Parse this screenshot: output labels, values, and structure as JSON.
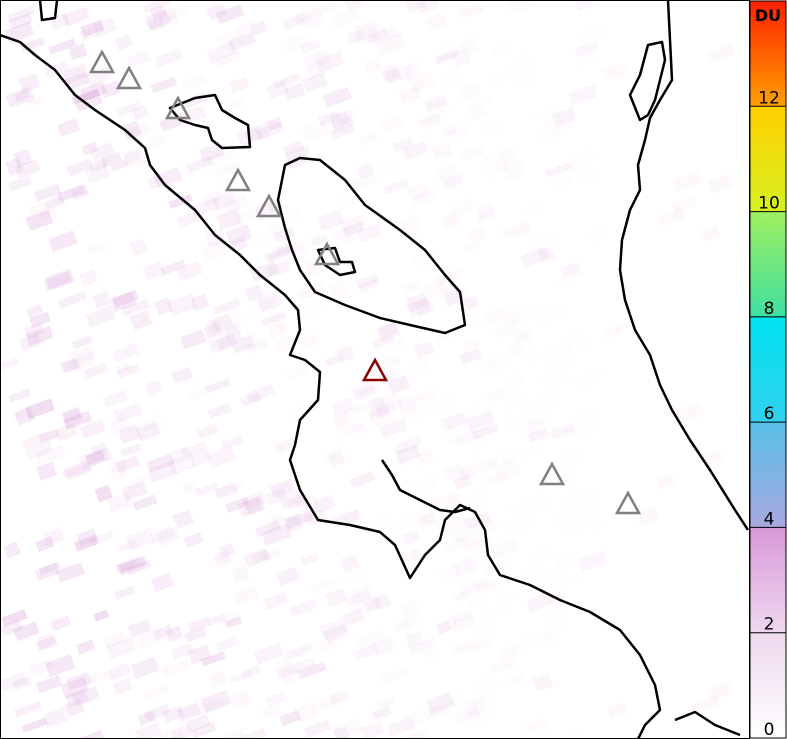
{
  "colorbar": {
    "unit_label": "DU",
    "ticks": [
      "0",
      "2",
      "4",
      "6",
      "8",
      "10",
      "12"
    ],
    "range": [
      0,
      14
    ],
    "stops": [
      {
        "value": 0,
        "color": "#ffffff"
      },
      {
        "value": 2,
        "color": "#eed8ee"
      },
      {
        "value": 4,
        "color": "#d898d8"
      },
      {
        "value": 4.01,
        "color": "#a8a8e0"
      },
      {
        "value": 6,
        "color": "#58c0e8"
      },
      {
        "value": 6.01,
        "color": "#30d0ee"
      },
      {
        "value": 8,
        "color": "#00e4f0"
      },
      {
        "value": 8.01,
        "color": "#40e0a0"
      },
      {
        "value": 10,
        "color": "#a0f060"
      },
      {
        "value": 10.01,
        "color": "#d8f020"
      },
      {
        "value": 12,
        "color": "#ffd000"
      },
      {
        "value": 12.01,
        "color": "#ffa000"
      },
      {
        "value": 14,
        "color": "#ff2000"
      }
    ]
  },
  "map": {
    "coastline_color": "#000000",
    "volcano_color": "#808080",
    "highlight_volcano_color": "#8b0000",
    "retrieval_color": "#d8a0d8"
  }
}
